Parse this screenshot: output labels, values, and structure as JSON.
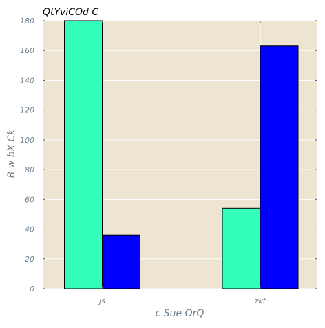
{
  "chart_data": {
    "type": "bar",
    "title": "QtYviCOd C",
    "xlabel": "c Sue OrQ",
    "ylabel": "B w  bX Ck",
    "categories": [
      "js",
      "zkt"
    ],
    "series": [
      {
        "values": [
          180,
          54
        ],
        "color": "#33ffbb"
      },
      {
        "values": [
          36,
          163
        ],
        "color": "#0000ff"
      }
    ],
    "ylim": [
      0,
      180
    ],
    "yticks": [
      0,
      20,
      40,
      60,
      80,
      100,
      120,
      140,
      160,
      180
    ],
    "grid": true,
    "legend": "none"
  },
  "style": {
    "plot_background": "#ede5d1",
    "grid_color": "#ffffff",
    "tick_label_color": "#6e7f8c",
    "axis_label_color": "#6e7f8c",
    "title_color": "#000000",
    "bar_edge_color": "#000000"
  }
}
